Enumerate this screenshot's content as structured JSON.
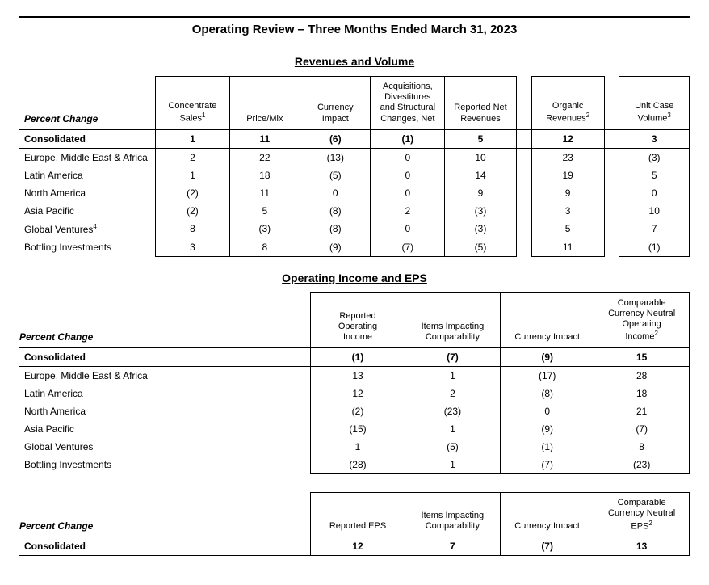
{
  "page_title": "Operating Review – Three Months Ended March 31, 2023",
  "section1_title": "Revenues and Volume",
  "section2_title": "Operating Income and EPS",
  "percent_change_label": "Percent Change",
  "consolidated_label": "Consolidated",
  "table1": {
    "columns": [
      {
        "label_html": "Concentrate<br>Sales<span class='sup'>1</span>"
      },
      {
        "label_html": "Price/Mix"
      },
      {
        "label_html": "Currency<br>Impact"
      },
      {
        "label_html": "Acquisitions,<br>Divestitures<br>and Structural<br>Changes, Net"
      },
      {
        "label_html": "Reported Net<br>Revenues"
      },
      {
        "label_html": "Organic<br>Revenues<span class='sup'>2</span>"
      },
      {
        "label_html": "Unit Case<br>Volume<span class='sup'>3</span>"
      }
    ],
    "gaps_after": [
      4,
      5
    ],
    "consolidated": [
      "1",
      "11",
      "(6)",
      "(1)",
      "5",
      "12",
      "3"
    ],
    "rows": [
      {
        "label": "Europe, Middle East & Africa",
        "cells": [
          "2",
          "22",
          "(13)",
          "0",
          "10",
          "23",
          "(3)"
        ]
      },
      {
        "label": "Latin America",
        "cells": [
          "1",
          "18",
          "(5)",
          "0",
          "14",
          "19",
          "5"
        ]
      },
      {
        "label": "North America",
        "cells": [
          "(2)",
          "11",
          "0",
          "0",
          "9",
          "9",
          "0"
        ]
      },
      {
        "label": "Asia Pacific",
        "cells": [
          "(2)",
          "5",
          "(8)",
          "2",
          "(3)",
          "3",
          "10"
        ]
      },
      {
        "label_html": "Global Ventures<span class='sup'>4</span>",
        "cells": [
          "8",
          "(3)",
          "(8)",
          "0",
          "(3)",
          "5",
          "7"
        ]
      },
      {
        "label": "Bottling Investments",
        "cells": [
          "3",
          "8",
          "(9)",
          "(7)",
          "(5)",
          "11",
          "(1)"
        ]
      }
    ]
  },
  "table2": {
    "columns": [
      {
        "label_html": "Reported<br>Operating<br>Income"
      },
      {
        "label_html": "Items Impacting<br>Comparability"
      },
      {
        "label_html": "Currency Impact"
      },
      {
        "label_html": "Comparable<br>Currency Neutral<br>Operating<br>Income<span class='sup'>2</span>"
      }
    ],
    "consolidated": [
      "(1)",
      "(7)",
      "(9)",
      "15"
    ],
    "rows": [
      {
        "label": "Europe, Middle East & Africa",
        "cells": [
          "13",
          "1",
          "(17)",
          "28"
        ]
      },
      {
        "label": "Latin America",
        "cells": [
          "12",
          "2",
          "(8)",
          "18"
        ]
      },
      {
        "label": "North America",
        "cells": [
          "(2)",
          "(23)",
          "0",
          "21"
        ]
      },
      {
        "label": "Asia Pacific",
        "cells": [
          "(15)",
          "1",
          "(9)",
          "(7)"
        ]
      },
      {
        "label": "Global Ventures",
        "cells": [
          "1",
          "(5)",
          "(1)",
          "8"
        ]
      },
      {
        "label": "Bottling Investments",
        "cells": [
          "(28)",
          "1",
          "(7)",
          "(23)"
        ]
      }
    ]
  },
  "table3": {
    "columns": [
      {
        "label_html": "Reported EPS"
      },
      {
        "label_html": "Items Impacting<br>Comparability"
      },
      {
        "label_html": "Currency Impact"
      },
      {
        "label_html": "Comparable<br>Currency Neutral<br>EPS<span class='sup'>2</span>"
      }
    ],
    "consolidated": [
      "12",
      "7",
      "(7)",
      "13"
    ]
  },
  "style": {
    "font_family": "Arial",
    "text_color": "#000000",
    "background_color": "#ffffff",
    "border_color": "#000000"
  }
}
